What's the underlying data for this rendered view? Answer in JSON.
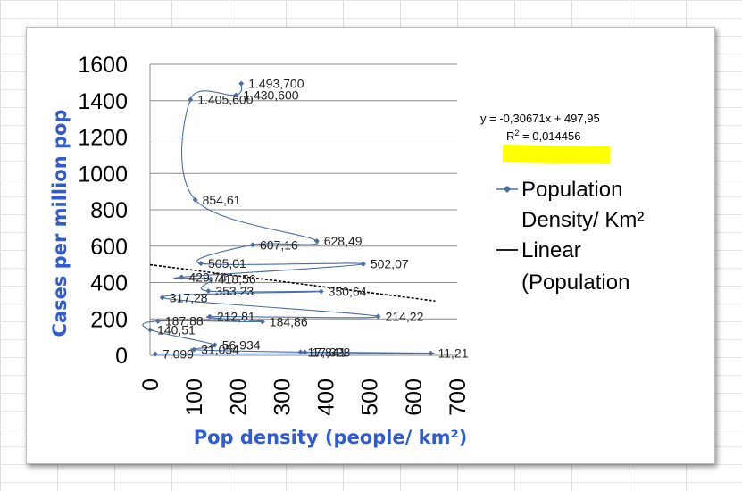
{
  "chart_data": {
    "type": "scatter",
    "xlabel": "Pop density (people/ km²)",
    "ylabel": "Cases per million pop",
    "xlim": [
      0,
      700
    ],
    "ylim": [
      0,
      1600
    ],
    "x_ticks": [
      "0",
      "100",
      "200",
      "300",
      "400",
      "500",
      "600",
      "700"
    ],
    "y_ticks": [
      "0",
      "200",
      "400",
      "600",
      "800",
      "1000",
      "1200",
      "1400",
      "1600"
    ],
    "grid": "horizontal",
    "legend_position": "right",
    "series": [
      {
        "name": "Population Density/ Km²",
        "color": "#4a6fa5",
        "style": "smoothed line with diamond markers",
        "points": [
          {
            "x": 208,
            "y": 1493.7,
            "label": "1.493,700"
          },
          {
            "x": 196,
            "y": 1430.6,
            "label": "1.430,600"
          },
          {
            "x": 92,
            "y": 1405.6,
            "label": "1.405,600"
          },
          {
            "x": 103,
            "y": 854.61,
            "label": "854,61"
          },
          {
            "x": 380,
            "y": 628.49,
            "label": "628,49"
          },
          {
            "x": 234,
            "y": 607.16,
            "label": "607,16"
          },
          {
            "x": 116,
            "y": 505.01,
            "label": "505,01"
          },
          {
            "x": 486,
            "y": 502.07,
            "label": "502,07"
          },
          {
            "x": 72,
            "y": 429.74,
            "label": "429,74"
          },
          {
            "x": 138,
            "y": 418.56,
            "label": "418,56"
          },
          {
            "x": 133,
            "y": 353.23,
            "label": "353,23"
          },
          {
            "x": 390,
            "y": 350.64,
            "label": "350,64"
          },
          {
            "x": 28,
            "y": 317.28,
            "label": "317,28"
          },
          {
            "x": 520,
            "y": 214.22,
            "label": "214,22"
          },
          {
            "x": 136,
            "y": 212.81,
            "label": "212,81"
          },
          {
            "x": 256,
            "y": 184.86,
            "label": "184,86"
          },
          {
            "x": 18,
            "y": 187.88,
            "label": "187,88"
          },
          {
            "x": 0,
            "y": 140.51,
            "label": "140,51"
          },
          {
            "x": 148,
            "y": 56.934,
            "label": "56,934"
          },
          {
            "x": 100,
            "y": 31.054,
            "label": "31,054"
          },
          {
            "x": 343,
            "y": 17.841,
            "label": "17,841"
          },
          {
            "x": 353,
            "y": 17.328,
            "label": "17,328"
          },
          {
            "x": 640,
            "y": 11.21,
            "label": "11,21"
          },
          {
            "x": 12,
            "y": 7.099,
            "label": "7,099"
          }
        ]
      },
      {
        "name": "Linear (Population",
        "color": "#000000",
        "style": "dashed trendline",
        "equation": {
          "slope": -0.30671,
          "intercept": 497.95
        }
      }
    ],
    "annotations": {
      "equation_line1": "y = -0,30671x + 497,95",
      "equation_r_prefix": "R",
      "equation_r_sup": "2",
      "equation_r_value": " = 0,014456",
      "highlight_color": "#ffff00"
    },
    "legend": {
      "series1_line1": "Population",
      "series1_line2": "Density/ Km²",
      "series2_line1": "Linear",
      "series2_line2": "(Population"
    }
  }
}
